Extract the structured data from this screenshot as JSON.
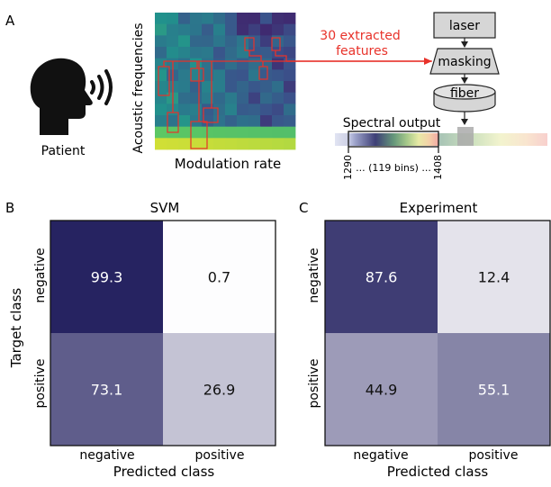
{
  "panel_a": {
    "label": "A",
    "patient_label": "Patient",
    "ylabel": "Acoustic frequencies",
    "xlabel": "Modulation rate",
    "annotation": [
      "30 extracted",
      "features"
    ],
    "pipeline": {
      "laser": "laser",
      "masking": "masking",
      "fiber": "fiber",
      "spectral_title": "Spectral output",
      "tick_start": "1290",
      "tick_end": "1408",
      "bins": "... (119 bins) ..."
    },
    "colors": {
      "accent": "#e8322a",
      "heatmap_dark": "#3b2d7a",
      "heatmap_bright": "#d9e64f"
    }
  },
  "chart_data": [
    {
      "type": "heatmap",
      "panel": "B",
      "title": "SVM",
      "ylabel": "Target class",
      "xlabel": "Predicted class",
      "rows": [
        "negative",
        "positive"
      ],
      "cols": [
        "negative",
        "positive"
      ],
      "values": [
        [
          99.3,
          0.7
        ],
        [
          73.1,
          26.9
        ]
      ],
      "labels": [
        [
          "99.3",
          "0.7"
        ],
        [
          "73.1",
          "26.9"
        ]
      ],
      "colormap": "purples"
    },
    {
      "type": "heatmap",
      "panel": "C",
      "title": "Experiment",
      "ylabel": "",
      "xlabel": "Predicted class",
      "rows": [
        "negative",
        "positive"
      ],
      "cols": [
        "negative",
        "positive"
      ],
      "values": [
        [
          87.6,
          12.4
        ],
        [
          44.9,
          55.1
        ]
      ],
      "labels": [
        [
          "87.6",
          "12.4"
        ],
        [
          "44.9",
          "55.1"
        ]
      ],
      "colormap": "purples"
    }
  ]
}
